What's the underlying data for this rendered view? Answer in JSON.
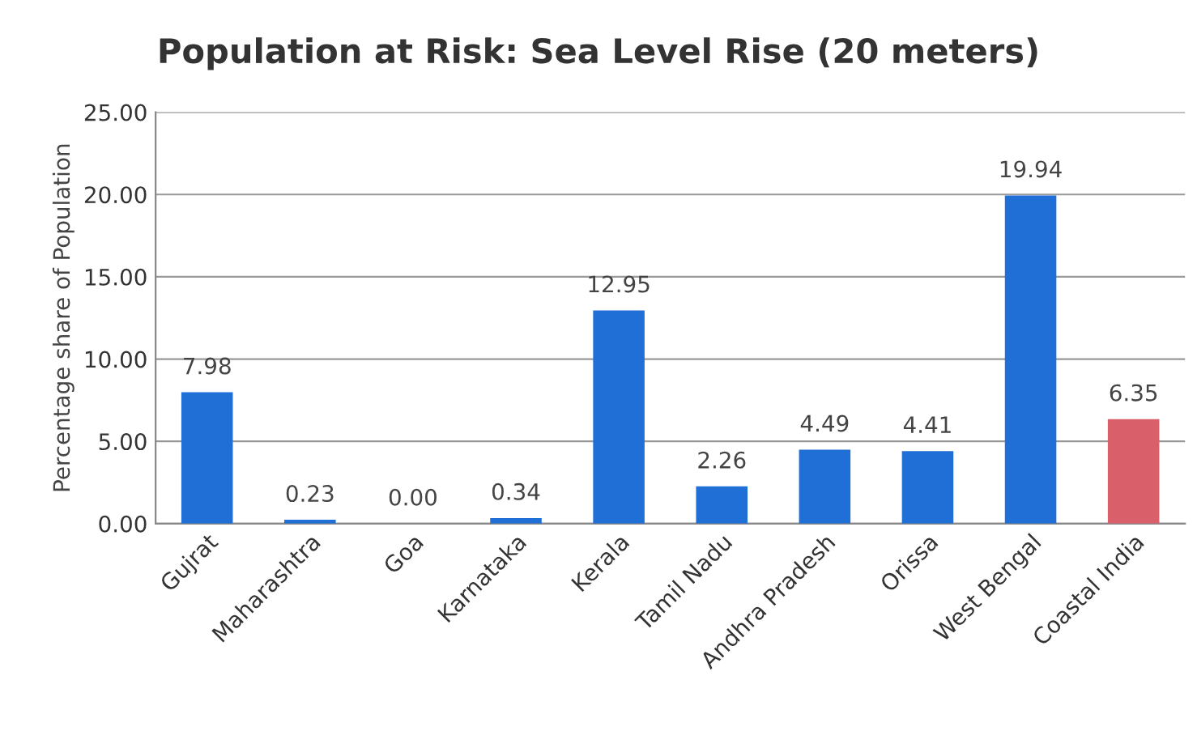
{
  "chart_data": {
    "type": "bar",
    "title": "Population at Risk: Sea Level Rise (20 meters)",
    "ylabel": "Percentage share of Population",
    "categories": [
      "Gujrat",
      "Maharashtra",
      "Goa",
      "Karnataka",
      "Kerala",
      "Tamil Nadu",
      "Andhra Pradesh",
      "Orissa",
      "West Bengal",
      "Coastal India"
    ],
    "values": [
      7.98,
      0.23,
      0.0,
      0.34,
      12.95,
      2.26,
      4.49,
      4.41,
      19.94,
      6.35
    ],
    "colors": [
      "#1f6fd6",
      "#1f6fd6",
      "#1f6fd6",
      "#1f6fd6",
      "#1f6fd6",
      "#1f6fd6",
      "#1f6fd6",
      "#1f6fd6",
      "#1f6fd6",
      "#d9606a"
    ],
    "value_labels": [
      "7.98",
      "0.23",
      "0.00",
      "0.34",
      "12.95",
      "2.26",
      "4.49",
      "4.41",
      "19.94",
      "6.35"
    ],
    "ylim": [
      0,
      25
    ],
    "yticks": [
      {
        "value": 0,
        "label": "0.00"
      },
      {
        "value": 5,
        "label": "5.00"
      },
      {
        "value": 10,
        "label": "10.00"
      },
      {
        "value": 15,
        "label": "15.00"
      },
      {
        "value": 20,
        "label": "20.00"
      },
      {
        "value": 25,
        "label": "25.00"
      }
    ],
    "grid": "y",
    "legend": false
  }
}
